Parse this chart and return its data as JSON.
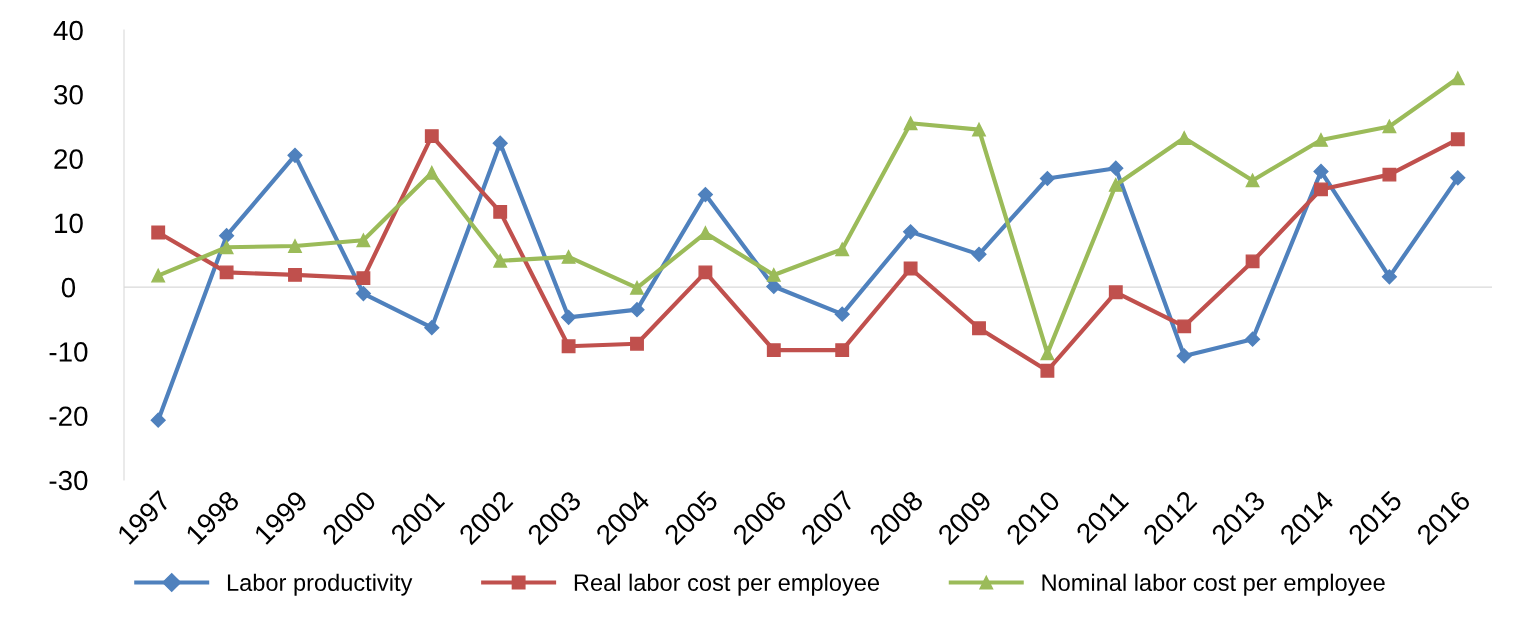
{
  "chart_data": {
    "type": "line",
    "categories": [
      "1997",
      "1998",
      "1999",
      "2000",
      "2001",
      "2002",
      "2003",
      "2004",
      "2005",
      "2006",
      "2007",
      "2008",
      "2009",
      "2010",
      "2011",
      "2012",
      "2013",
      "2014",
      "2015",
      "2016"
    ],
    "series": [
      {
        "name": "Labor productivity",
        "color": "#4f81bd",
        "marker": "diamond",
        "values": [
          -20.7,
          8.0,
          20.5,
          -1.0,
          -6.3,
          22.4,
          -4.7,
          -3.5,
          14.4,
          0.1,
          -4.2,
          8.6,
          5.1,
          16.9,
          18.5,
          -10.7,
          -8.1,
          18.0,
          1.6,
          17.0
        ]
      },
      {
        "name": "Real labor cost per employee",
        "color": "#c0504d",
        "marker": "square",
        "values": [
          8.5,
          2.3,
          1.9,
          1.4,
          23.5,
          11.7,
          -9.2,
          -8.8,
          2.3,
          -9.8,
          -9.8,
          2.9,
          -6.4,
          -13.0,
          -0.8,
          -6.1,
          4.0,
          15.2,
          17.5,
          23.0
        ]
      },
      {
        "name": "Nominal labor cost per employee",
        "color": "#9bbb59",
        "marker": "triangle",
        "values": [
          1.8,
          6.2,
          6.4,
          7.3,
          17.8,
          4.1,
          4.7,
          -0.1,
          8.4,
          1.9,
          5.9,
          25.5,
          24.5,
          -10.3,
          15.9,
          23.2,
          16.6,
          22.9,
          25.0,
          32.5
        ]
      }
    ],
    "ylim": [
      -30,
      40
    ],
    "yticks": [
      -30,
      -20,
      -10,
      0,
      10,
      20,
      30,
      40
    ],
    "grid": false,
    "ref_lines": [
      {
        "axis": "y",
        "value": 0,
        "color": "#d9d9d9"
      }
    ],
    "legend": "bottom",
    "line_style": "solid"
  }
}
